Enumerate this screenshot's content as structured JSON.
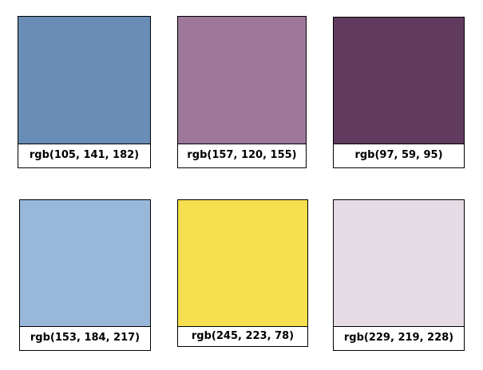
{
  "swatches": [
    {
      "color": "#698db6",
      "label": "rgb(105, 141, 182)"
    },
    {
      "color": "#9d789b",
      "label": "rgb(157, 120, 155)"
    },
    {
      "color": "#613b5f",
      "label": "rgb(97, 59, 95)"
    },
    {
      "color": "#99b8d9",
      "label": "rgb(153, 184, 217)"
    },
    {
      "color": "#f5df4e",
      "label": "rgb(245, 223, 78)"
    },
    {
      "color": "#e5dbe4",
      "label": "rgb(229, 219, 228)"
    }
  ]
}
